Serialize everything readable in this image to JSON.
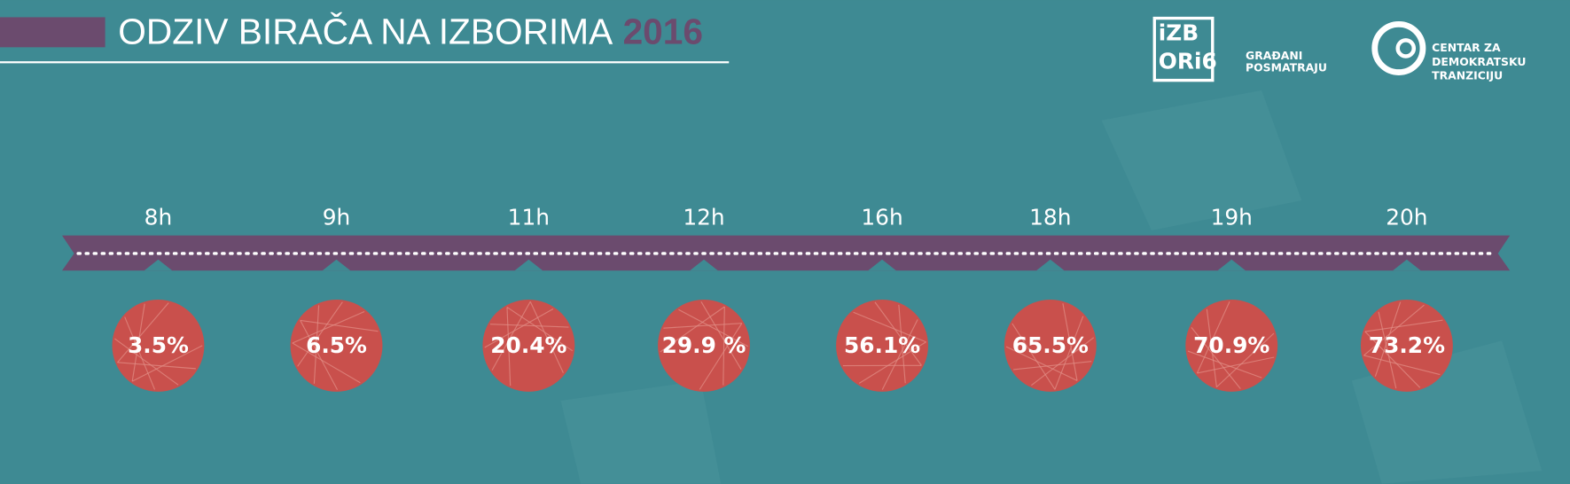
{
  "header": {
    "title": "ODZIV BIRAČA NA IZBORIMA",
    "year": "2016"
  },
  "logos": {
    "izbori": {
      "mark_line1": "iZB",
      "mark_line2": "ORi6",
      "tagline_line1": "GRAĐANI",
      "tagline_line2": "POSMATRAJU"
    },
    "cdt": {
      "line1": "CENTAR ZA",
      "line2": "DEMOKRATSKU",
      "line3": "TRANZICIJU"
    }
  },
  "timeline": [
    {
      "time": "8h",
      "turnout": "3.5%"
    },
    {
      "time": "9h",
      "turnout": "6.5%"
    },
    {
      "time": "11h",
      "turnout": "20.4%"
    },
    {
      "time": "12h",
      "turnout": "29.9 %"
    },
    {
      "time": "16h",
      "turnout": "56.1%"
    },
    {
      "time": "18h",
      "turnout": "65.5%"
    },
    {
      "time": "19h",
      "turnout": "70.9%"
    },
    {
      "time": "20h",
      "turnout": "73.2%"
    }
  ]
}
